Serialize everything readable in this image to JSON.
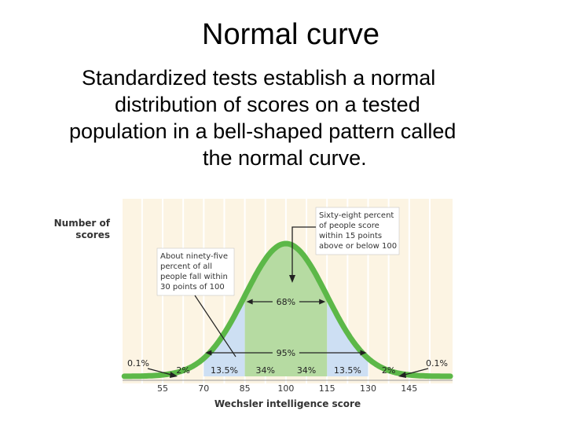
{
  "slide": {
    "title": "Normal curve",
    "body_lines": [
      "Standardized tests establish a normal",
      "distribution of scores on a tested",
      "population in a bell-shaped pattern called",
      "the normal curve."
    ]
  },
  "chart_data": {
    "type": "area",
    "ylabel": [
      "Number of",
      "scores"
    ],
    "xlabel": "Wechsler intelligence score",
    "x_ticks": [
      55,
      70,
      85,
      100,
      115,
      130,
      145
    ],
    "xlim": [
      41,
      160
    ],
    "mean": 100,
    "sd": 15,
    "band_percents": [
      {
        "from": 41,
        "to": 55,
        "label": "0.1%"
      },
      {
        "from": 55,
        "to": 70,
        "label": "2%"
      },
      {
        "from": 70,
        "to": 85,
        "label": "13.5%"
      },
      {
        "from": 85,
        "to": 100,
        "label": "34%"
      },
      {
        "from": 100,
        "to": 115,
        "label": "34%"
      },
      {
        "from": 115,
        "to": 130,
        "label": "13.5%"
      },
      {
        "from": 130,
        "to": 145,
        "label": "2%"
      },
      {
        "from": 145,
        "to": 160,
        "label": "0.1%"
      }
    ],
    "ranges": [
      {
        "from": 85,
        "to": 115,
        "label": "68%"
      },
      {
        "from": 70,
        "to": 130,
        "label": "95%"
      }
    ],
    "annotations": {
      "sixty_eight": [
        "Sixty-eight percent",
        "of people score",
        "within 15 points",
        "above or below 100"
      ],
      "ninety_five": [
        "About ninety-five",
        "percent of all",
        "people fall within",
        "30 points of 100"
      ]
    },
    "colors": {
      "panel_bg": "#fcf4e3",
      "curve": "#5cb848",
      "inner_fill": "#b6dba2",
      "outer_fill": "#cddff3",
      "grid": "#ffffff"
    }
  }
}
